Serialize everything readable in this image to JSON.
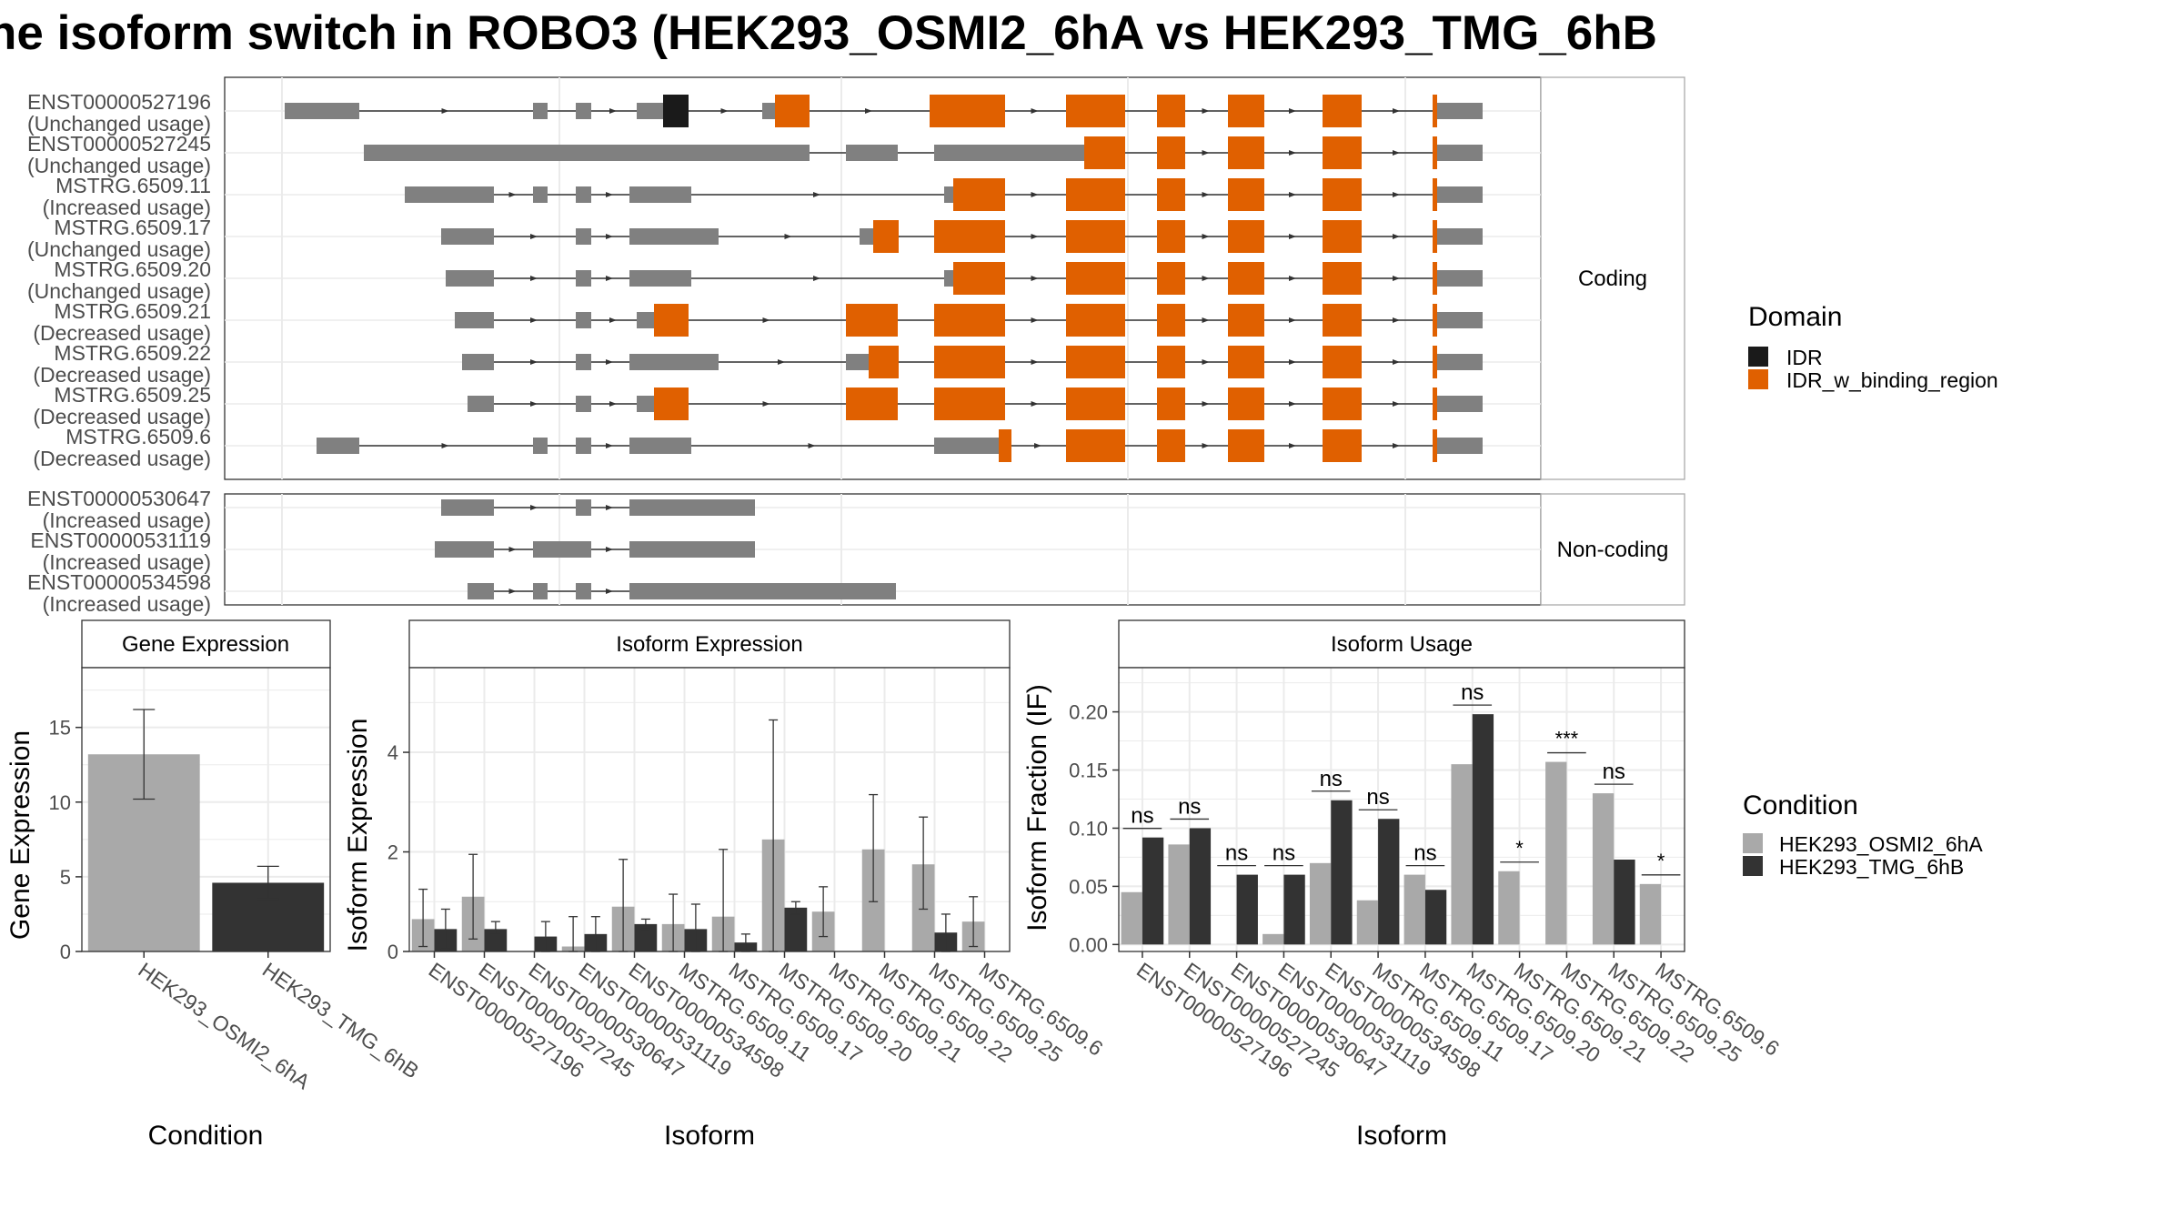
{
  "title": "he isoform switch in ROBO3 (HEK293_OSMI2_6hA vs HEK293_TMG_6hB",
  "colors": {
    "cond_a": "#a9a9a9",
    "cond_b": "#333333",
    "exon": "#808080",
    "idr": "#1a1a1a",
    "idr_bind": "#e06000",
    "grid": "#ebebeb"
  },
  "chart_data": [
    {
      "type": "gene-structure",
      "panels": [
        {
          "label": "Coding",
          "transcripts": [
            {
              "name": "ENST00000527196",
              "usage": "(Unchanged usage)"
            },
            {
              "name": "ENST00000527245",
              "usage": "(Unchanged usage)"
            },
            {
              "name": "MSTRG.6509.11",
              "usage": "(Increased usage)"
            },
            {
              "name": "MSTRG.6509.17",
              "usage": "(Unchanged usage)"
            },
            {
              "name": "MSTRG.6509.20",
              "usage": "(Unchanged usage)"
            },
            {
              "name": "MSTRG.6509.21",
              "usage": "(Decreased usage)"
            },
            {
              "name": "MSTRG.6509.22",
              "usage": "(Decreased usage)"
            },
            {
              "name": "MSTRG.6509.25",
              "usage": "(Decreased usage)"
            },
            {
              "name": "MSTRG.6509.6",
              "usage": "(Decreased usage)"
            }
          ]
        },
        {
          "label": "Non-coding",
          "transcripts": [
            {
              "name": "ENST00000530647",
              "usage": "(Increased usage)"
            },
            {
              "name": "ENST00000531119",
              "usage": "(Increased usage)"
            },
            {
              "name": "ENST00000534598",
              "usage": "(Increased usage)"
            }
          ]
        }
      ],
      "legend": {
        "title": "Domain",
        "entries": [
          "IDR",
          "IDR_w_binding_region"
        ]
      }
    },
    {
      "type": "bar",
      "title": "Gene Expression",
      "xlabel": "Condition",
      "ylabel": "Gene Expression",
      "categories": [
        "HEK293_OSMI2_6hA",
        "HEK293_TMG_6hB"
      ],
      "values": [
        13.2,
        4.6
      ],
      "err_low": [
        10.2,
        3.5
      ],
      "err_high": [
        16.2,
        5.7
      ],
      "ylim": [
        0,
        19
      ],
      "yticks": [
        "0",
        "5",
        "10",
        "15"
      ]
    },
    {
      "type": "bar",
      "title": "Isoform Expression",
      "xlabel": "Isoform",
      "ylabel": "Isoform Expression",
      "categories": [
        "ENST00000527196",
        "ENST00000527245",
        "ENST00000530647",
        "ENST00000531119",
        "ENST00000534598",
        "MSTRG.6509.11",
        "MSTRG.6509.17",
        "MSTRG.6509.20",
        "MSTRG.6509.21",
        "MSTRG.6509.22",
        "MSTRG.6509.25",
        "MSTRG.6509.6"
      ],
      "series": [
        {
          "name": "HEK293_OSMI2_6hA",
          "values": [
            0.65,
            1.1,
            0.0,
            0.1,
            0.9,
            0.55,
            0.7,
            2.25,
            0.8,
            2.05,
            1.75,
            0.6
          ],
          "err_low": [
            0.1,
            0.25,
            0.0,
            0.0,
            0.0,
            0.0,
            0.0,
            0.0,
            0.3,
            1.0,
            0.85,
            0.1
          ],
          "err_high": [
            1.25,
            1.95,
            0.0,
            0.7,
            1.85,
            1.15,
            2.05,
            4.65,
            1.3,
            3.15,
            2.7,
            1.1
          ]
        },
        {
          "name": "HEK293_TMG_6hB",
          "values": [
            0.45,
            0.45,
            0.3,
            0.35,
            0.55,
            0.45,
            0.18,
            0.88,
            0.0,
            0.0,
            0.38,
            0.0
          ],
          "err_low": [
            0.05,
            0.35,
            0.0,
            0.0,
            0.45,
            0.0,
            0.0,
            0.75,
            0.0,
            0.0,
            0.0,
            0.0
          ],
          "err_high": [
            0.85,
            0.6,
            0.6,
            0.7,
            0.65,
            0.95,
            0.35,
            1.0,
            0.0,
            0.0,
            0.75,
            0.0
          ]
        }
      ],
      "ylim": [
        0,
        5.7
      ],
      "yticks": [
        "0",
        "2",
        "4"
      ]
    },
    {
      "type": "bar",
      "title": "Isoform Usage",
      "xlabel": "Isoform",
      "ylabel": "Isoform Fraction (IF)",
      "categories": [
        "ENST00000527196",
        "ENST00000527245",
        "ENST00000530647",
        "ENST00000531119",
        "ENST00000534598",
        "MSTRG.6509.11",
        "MSTRG.6509.17",
        "MSTRG.6509.20",
        "MSTRG.6509.21",
        "MSTRG.6509.22",
        "MSTRG.6509.25",
        "MSTRG.6509.6"
      ],
      "series": [
        {
          "name": "HEK293_OSMI2_6hA",
          "values": [
            0.045,
            0.086,
            0.0,
            0.009,
            0.07,
            0.038,
            0.06,
            0.155,
            0.063,
            0.157,
            0.13,
            0.052
          ]
        },
        {
          "name": "HEK293_TMG_6hB",
          "values": [
            0.092,
            0.1,
            0.06,
            0.06,
            0.124,
            0.108,
            0.047,
            0.198,
            0.0,
            0.0,
            0.073,
            0.0
          ]
        }
      ],
      "significance": [
        "ns",
        "ns",
        "ns",
        "ns",
        "ns",
        "ns",
        "ns",
        "ns",
        "*",
        "***",
        "ns",
        "*"
      ],
      "ylim": [
        -0.006,
        0.238
      ],
      "yticks": [
        "0.00",
        "0.05",
        "0.10",
        "0.15",
        "0.20"
      ]
    }
  ],
  "condition_legend": {
    "title": "Condition",
    "entries": [
      "HEK293_OSMI2_6hA",
      "HEK293_TMG_6hB"
    ]
  }
}
